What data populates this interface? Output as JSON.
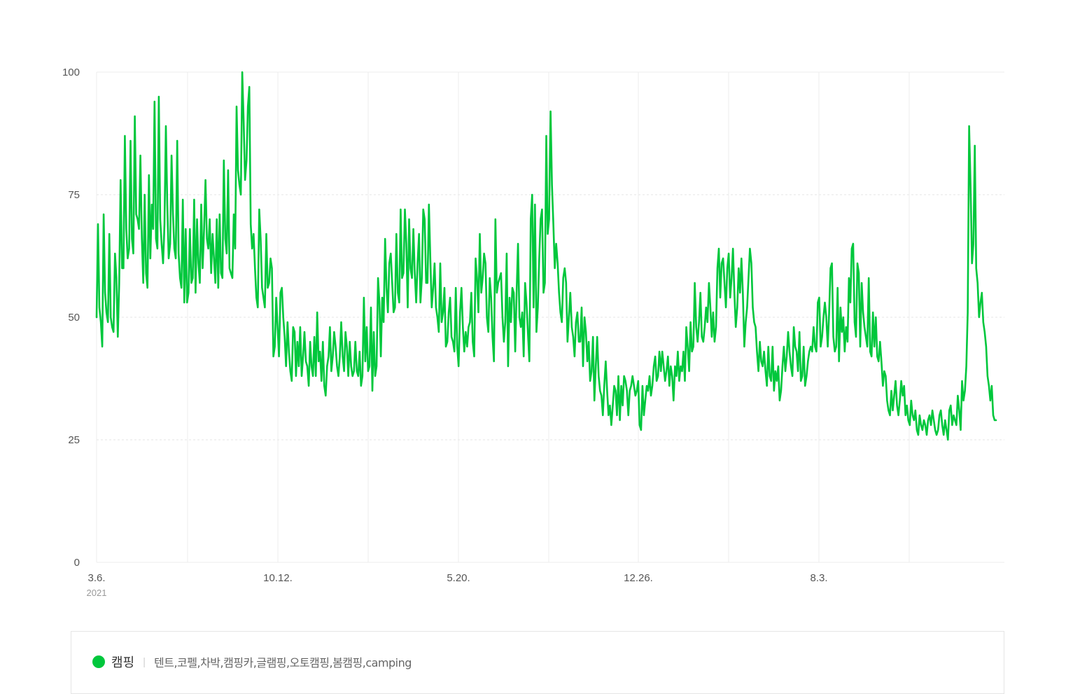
{
  "chart_data": {
    "type": "line",
    "ylim": [
      0,
      100
    ],
    "y_ticks": [
      "0",
      "25",
      "50",
      "75",
      "100"
    ],
    "x_tick_labels": [
      "3.6.",
      "10.12.",
      "5.20.",
      "12.26.",
      "8.3."
    ],
    "year_label": "2021",
    "grid": true,
    "series_color": "#00c73c",
    "series": [
      {
        "name": "캠핑",
        "values": [
          50,
          69,
          52,
          49,
          44,
          71,
          55,
          51,
          49,
          67,
          50,
          48,
          47,
          63,
          58,
          46,
          57,
          78,
          60,
          60,
          87,
          68,
          62,
          64,
          86,
          66,
          63,
          91,
          71,
          70,
          68,
          83,
          66,
          57,
          75,
          59,
          56,
          79,
          62,
          73,
          68,
          94,
          66,
          64,
          95,
          70,
          65,
          61,
          69,
          89,
          73,
          62,
          65,
          83,
          71,
          64,
          62,
          86,
          63,
          58,
          56,
          74,
          53,
          68,
          53,
          55,
          68,
          57,
          58,
          74,
          55,
          70,
          61,
          57,
          73,
          60,
          68,
          78,
          66,
          64,
          70,
          59,
          67,
          62,
          57,
          70,
          56,
          71,
          59,
          58,
          82,
          66,
          63,
          80,
          60,
          59,
          58,
          71,
          64,
          93,
          80,
          77,
          75,
          100,
          90,
          78,
          82,
          93,
          97,
          69,
          64,
          67,
          60,
          54,
          52,
          72,
          66,
          56,
          54,
          52,
          67,
          56,
          57,
          62,
          60,
          42,
          44,
          54,
          48,
          42,
          55,
          56,
          50,
          46,
          40,
          49,
          43,
          39,
          37,
          48,
          47,
          38,
          45,
          40,
          48,
          38,
          42,
          47,
          41,
          40,
          36,
          45,
          40,
          38,
          46,
          38,
          51,
          41,
          43,
          37,
          45,
          36,
          34,
          40,
          42,
          48,
          39,
          42,
          47,
          44,
          40,
          38,
          42,
          49,
          42,
          39,
          47,
          44,
          38,
          45,
          40,
          38,
          39,
          45,
          39,
          38,
          43,
          36,
          38,
          54,
          41,
          48,
          39,
          40,
          52,
          35,
          47,
          38,
          40,
          58,
          53,
          42,
          54,
          49,
          66,
          56,
          51,
          61,
          63,
          57,
          51,
          52,
          67,
          55,
          53,
          72,
          58,
          59,
          72,
          65,
          52,
          70,
          60,
          58,
          68,
          59,
          53,
          61,
          67,
          53,
          58,
          72,
          70,
          57,
          57,
          73,
          62,
          52,
          56,
          61,
          52,
          50,
          47,
          61,
          49,
          51,
          56,
          44,
          45,
          51,
          54,
          46,
          45,
          43,
          56,
          44,
          40,
          51,
          56,
          48,
          43,
          47,
          44,
          48,
          49,
          55,
          45,
          42,
          62,
          58,
          51,
          67,
          55,
          58,
          63,
          61,
          50,
          47,
          58,
          54,
          46,
          41,
          70,
          55,
          57,
          58,
          59,
          50,
          45,
          49,
          63,
          40,
          54,
          49,
          56,
          55,
          43,
          55,
          65,
          50,
          48,
          51,
          42,
          57,
          53,
          47,
          41,
          70,
          75,
          52,
          73,
          47,
          52,
          62,
          70,
          72,
          55,
          57,
          87,
          67,
          70,
          92,
          77,
          69,
          60,
          65,
          61,
          55,
          51,
          49,
          58,
          60,
          57,
          45,
          50,
          55,
          48,
          46,
          42,
          49,
          51,
          45,
          45,
          52,
          40,
          50,
          47,
          41,
          45,
          37,
          39,
          46,
          33,
          40,
          46,
          38,
          35,
          34,
          30,
          36,
          41,
          35,
          30,
          32,
          28,
          32,
          36,
          35,
          30,
          38,
          29,
          36,
          32,
          38,
          37,
          35,
          30,
          35,
          36,
          38,
          36,
          34,
          35,
          37,
          28,
          27,
          36,
          30,
          33,
          36,
          35,
          38,
          34,
          36,
          40,
          42,
          37,
          38,
          43,
          39,
          43,
          40,
          37,
          39,
          42,
          36,
          40,
          38,
          33,
          40,
          38,
          43,
          37,
          40,
          39,
          43,
          37,
          48,
          44,
          39,
          49,
          43,
          44,
          57,
          48,
          45,
          49,
          55,
          46,
          45,
          48,
          52,
          49,
          57,
          52,
          46,
          51,
          45,
          48,
          60,
          64,
          54,
          61,
          62,
          57,
          52,
          60,
          63,
          54,
          58,
          64,
          55,
          48,
          52,
          60,
          55,
          62,
          55,
          44,
          49,
          52,
          58,
          64,
          61,
          52,
          49,
          48,
          43,
          39,
          45,
          41,
          40,
          43,
          39,
          36,
          44,
          38,
          37,
          44,
          35,
          39,
          37,
          40,
          33,
          35,
          40,
          44,
          39,
          42,
          47,
          43,
          40,
          38,
          48,
          44,
          43,
          39,
          47,
          37,
          38,
          44,
          36,
          38,
          41,
          43,
          44,
          43,
          48,
          44,
          43,
          53,
          54,
          44,
          46,
          50,
          53,
          50,
          44,
          51,
          60,
          61,
          46,
          43,
          44,
          56,
          41,
          52,
          47,
          50,
          43,
          48,
          45,
          58,
          53,
          64,
          65,
          49,
          46,
          61,
          59,
          44,
          57,
          51,
          48,
          46,
          44,
          58,
          43,
          42,
          51,
          44,
          50,
          42,
          41,
          45,
          41,
          36,
          39,
          38,
          33,
          31,
          30,
          35,
          31,
          34,
          37,
          32,
          30,
          33,
          37,
          34,
          36,
          30,
          32,
          29,
          28,
          33,
          30,
          29,
          31,
          27,
          26,
          30,
          28,
          27,
          29,
          28,
          26,
          29,
          30,
          28,
          31,
          29,
          27,
          26,
          27,
          30,
          31,
          28,
          26,
          29,
          27,
          25,
          31,
          32,
          28,
          30,
          29,
          28,
          34,
          31,
          27,
          37,
          33,
          35,
          40,
          51,
          89,
          77,
          61,
          65,
          85,
          60,
          57,
          50,
          53,
          55,
          49,
          47,
          44,
          38,
          36,
          33,
          36,
          30,
          29,
          29
        ]
      }
    ]
  },
  "legend": {
    "name": "캠핑",
    "separator": "|",
    "keywords": "텐트,코펠,차박,캠핑카,글램핑,오토캠핑,봄캠핑,camping"
  }
}
